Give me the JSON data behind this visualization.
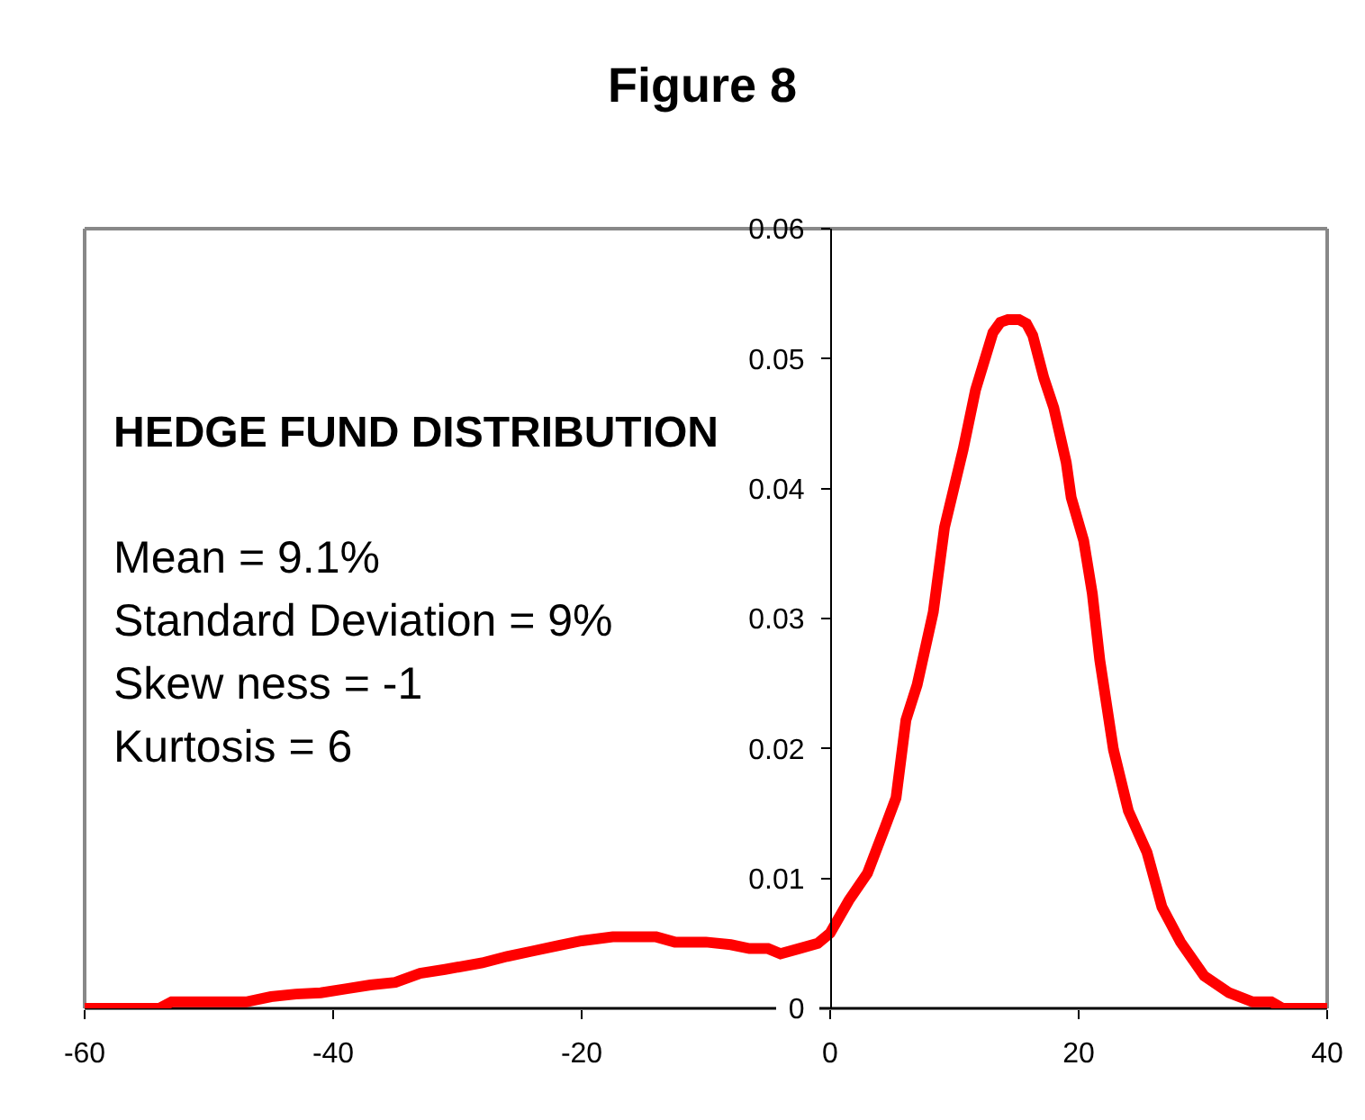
{
  "chart_data": {
    "type": "line",
    "title": "Figure 8",
    "annotations": [
      "HEDGE FUND DISTRIBUTION",
      "Mean = 9.1%",
      "Standard Deviation = 9%",
      "Skew ness = -1",
      "Kurtosis = 6"
    ],
    "x": [
      -60,
      -54,
      -53,
      -47,
      -45,
      -43,
      -41,
      -39,
      -37,
      -35,
      -33,
      -31,
      -28,
      -26,
      -24,
      -22,
      -20,
      -17.5,
      -14,
      -12.5,
      -10,
      -8,
      -6.5,
      -5,
      -4,
      -2.5,
      -1,
      0,
      1.5,
      3,
      4.4,
      5.3,
      6.1,
      7,
      8.3,
      9.2,
      10.7,
      11.7,
      13.1,
      13.7,
      14.3,
      15.2,
      15.8,
      16.3,
      17.2,
      18,
      19,
      19.4,
      20.4,
      21.1,
      21.7,
      22.8,
      24,
      25.5,
      26.7,
      28.2,
      30.1,
      32.1,
      34,
      35.5,
      36.4,
      40
    ],
    "series": [
      {
        "color": "#ff0000",
        "values": [
          0,
          0,
          0.0005,
          0.0005,
          0.0009,
          0.0011,
          0.0012,
          0.0015,
          0.0018,
          0.002,
          0.0027,
          0.003,
          0.0035,
          0.004,
          0.0044,
          0.0048,
          0.0052,
          0.0055,
          0.0055,
          0.0051,
          0.0051,
          0.0049,
          0.0046,
          0.0046,
          0.0042,
          0.0046,
          0.005,
          0.0058,
          0.0083,
          0.0104,
          0.0139,
          0.0162,
          0.0222,
          0.0249,
          0.0305,
          0.037,
          0.043,
          0.0476,
          0.052,
          0.0528,
          0.053,
          0.053,
          0.0527,
          0.0518,
          0.0485,
          0.0462,
          0.042,
          0.0393,
          0.036,
          0.0319,
          0.0268,
          0.0199,
          0.0152,
          0.012,
          0.0078,
          0.0051,
          0.0025,
          0.0012,
          0.0005,
          0.0005,
          0,
          0
        ]
      }
    ],
    "xlim": [
      -60,
      40
    ],
    "xticks": [
      -60,
      -40,
      -20,
      0,
      20,
      40
    ],
    "ylim": [
      0,
      0.06
    ],
    "yticks": [
      0,
      0.01,
      0.02,
      0.03,
      0.04,
      0.05,
      0.06
    ],
    "grid": false,
    "marker": "none",
    "line_style": "solid"
  }
}
